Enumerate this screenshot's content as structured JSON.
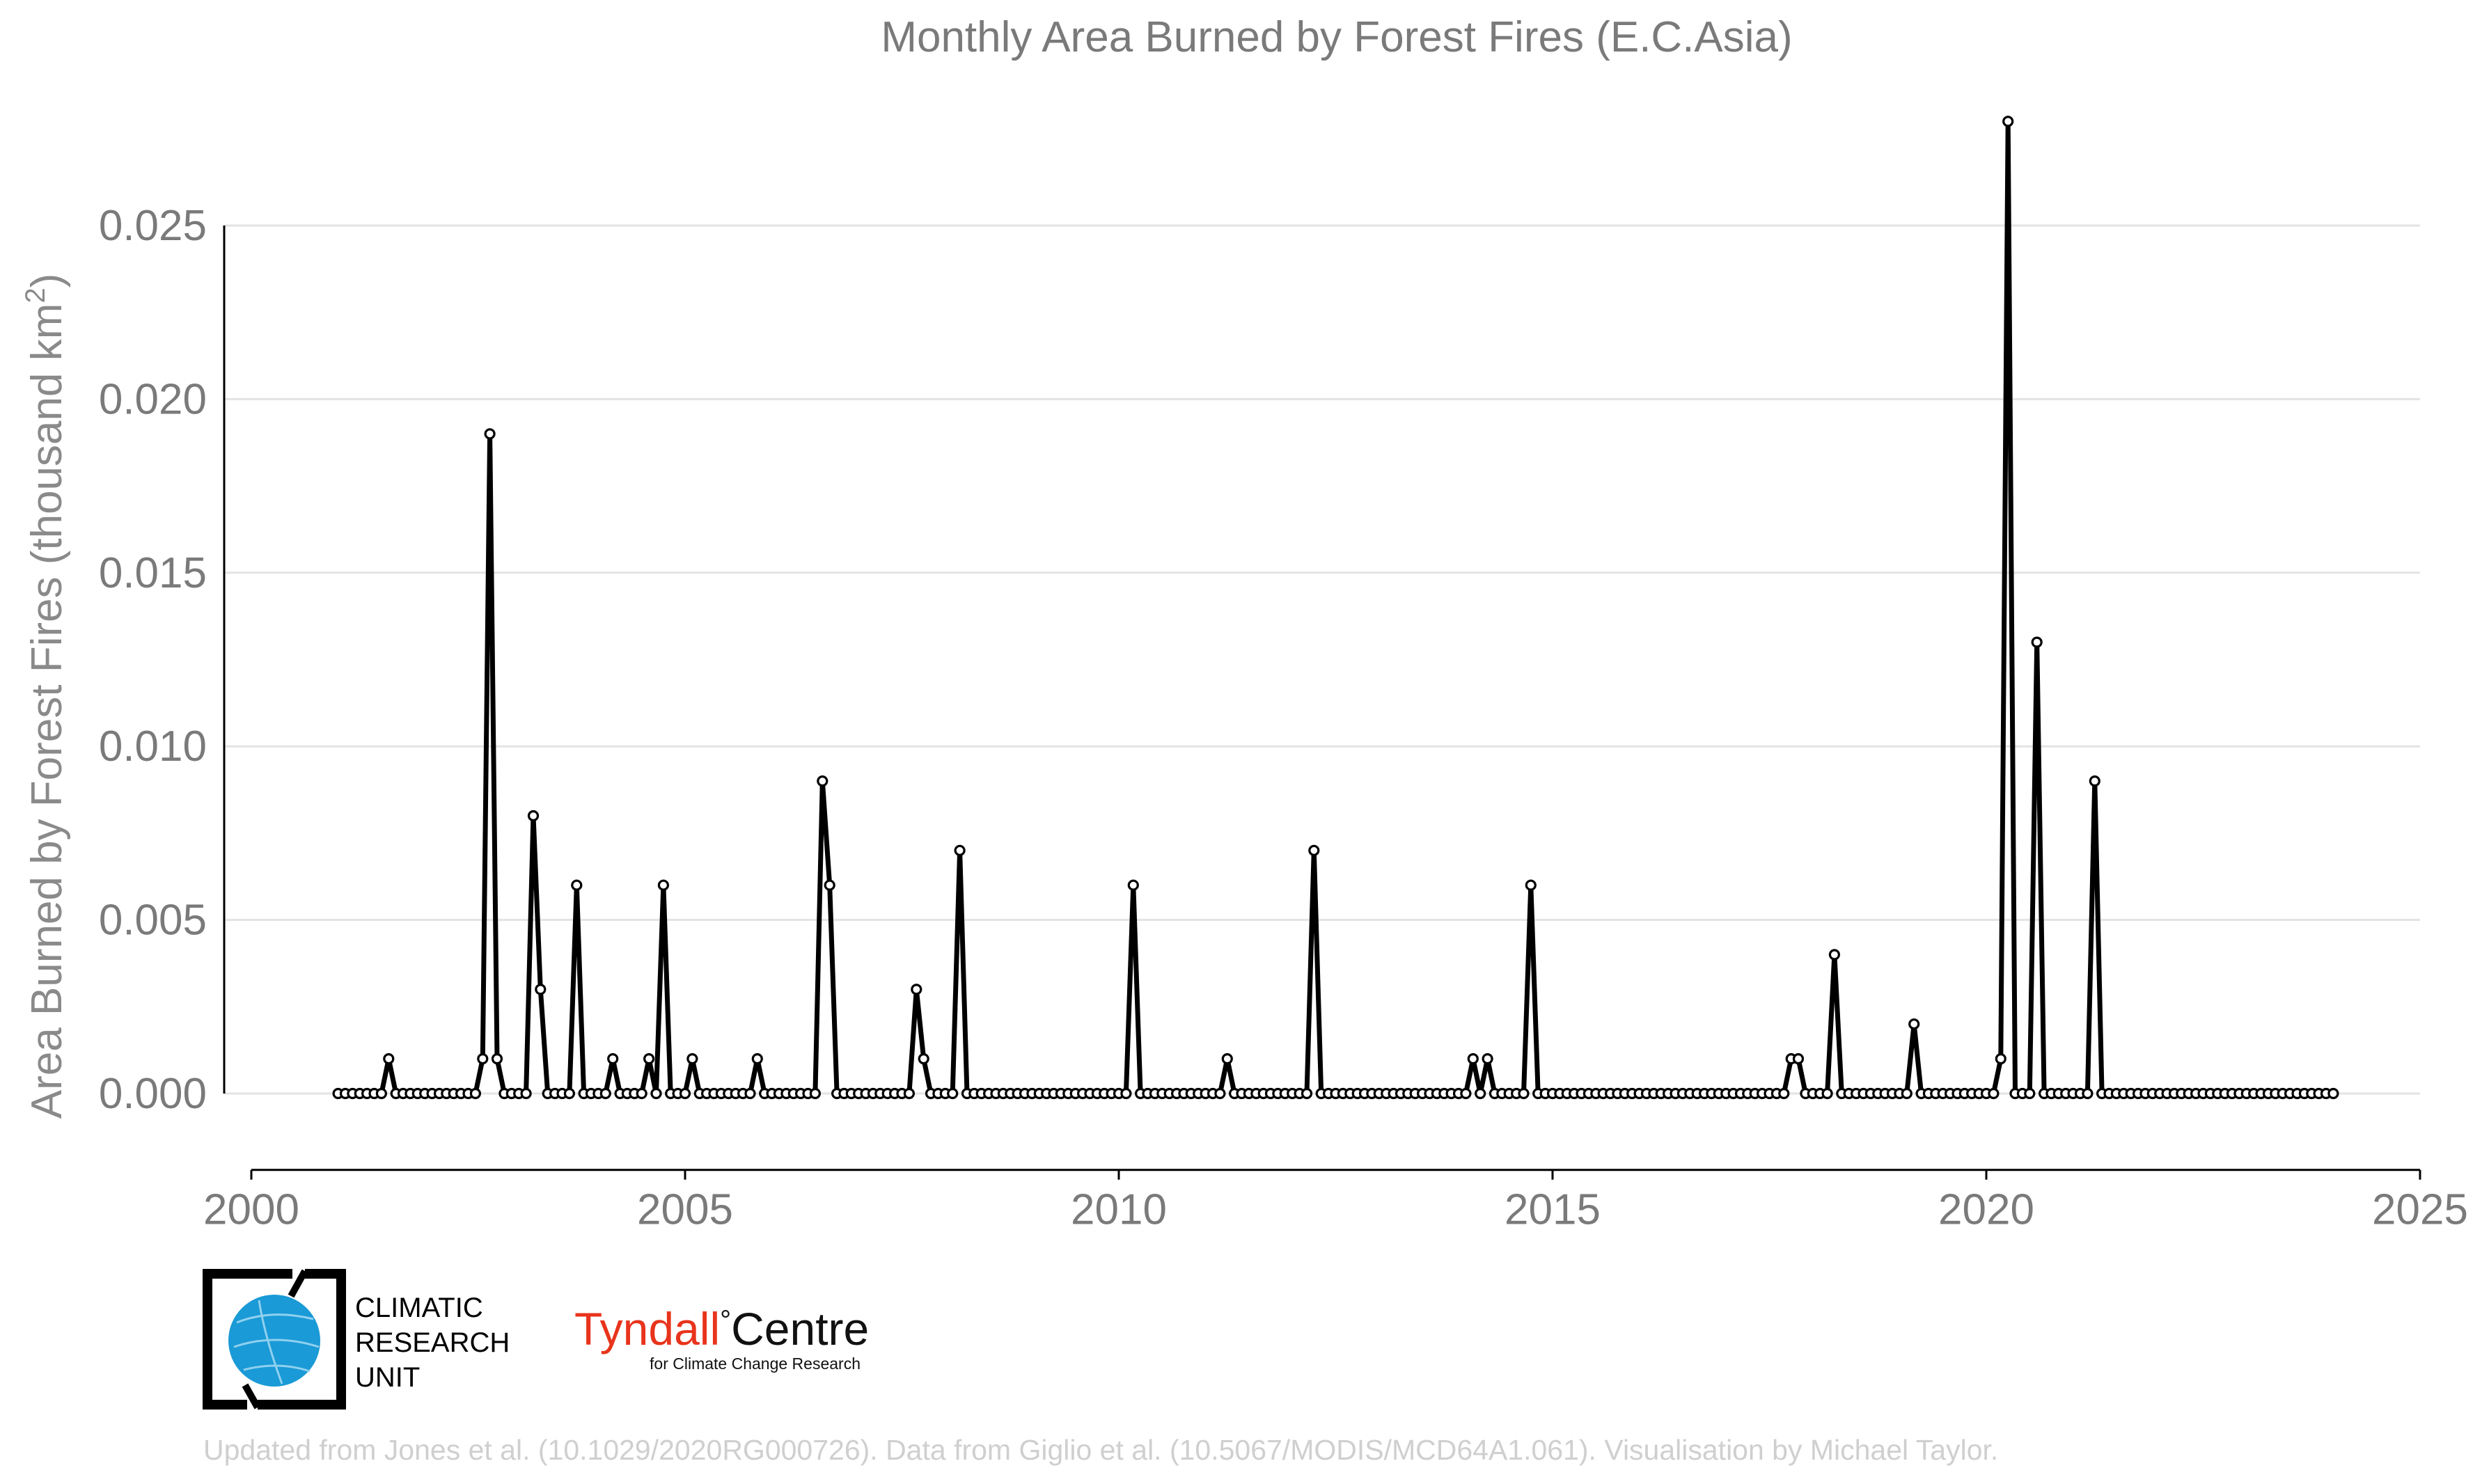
{
  "chart_data": {
    "type": "line",
    "title": "Monthly Area Burned by Forest Fires (E.C.Asia)",
    "ylabel_main": "Area Burned by Forest Fires (thousand km",
    "ylabel_sup": "2",
    "ylabel_close": ")",
    "xlabel": "",
    "xlim": [
      2000,
      2025
    ],
    "ylim": [
      -0.0022,
      0.0285
    ],
    "x_ticks": [
      "2000",
      "2005",
      "2010",
      "2015",
      "2020",
      "2025"
    ],
    "y_ticks": [
      "0.000",
      "0.005",
      "0.010",
      "0.015",
      "0.020",
      "0.025"
    ],
    "grid": true,
    "x_start_year": 2001,
    "x_start_month": 1,
    "months_note_unused": "",
    "series": [
      {
        "values": [
          0,
          0,
          0,
          0,
          0,
          0,
          0,
          0.001,
          0,
          0,
          0,
          0,
          0,
          0,
          0,
          0,
          0,
          0,
          0,
          0,
          0.001,
          0.019,
          0.001,
          0,
          0,
          0,
          0,
          0.008,
          0.003,
          0,
          0,
          0,
          0,
          0.006,
          0,
          0,
          0,
          0,
          0.001,
          0,
          0,
          0,
          0,
          0.001,
          0,
          0.006,
          0,
          0,
          0,
          0.001,
          0,
          0,
          0,
          0,
          0,
          0,
          0,
          0,
          0.001,
          0,
          0,
          0,
          0,
          0,
          0,
          0,
          0,
          0.009,
          0.006,
          0,
          0,
          0,
          0,
          0,
          0,
          0,
          0,
          0,
          0,
          0,
          0.003,
          0.001,
          0,
          0,
          0,
          0,
          0.007,
          0,
          0,
          0,
          0,
          0,
          0,
          0,
          0,
          0,
          0,
          0,
          0,
          0,
          0,
          0,
          0,
          0,
          0,
          0,
          0,
          0,
          0,
          0,
          0.006,
          0,
          0,
          0,
          0,
          0,
          0,
          0,
          0,
          0,
          0,
          0,
          0,
          0.001,
          0,
          0,
          0,
          0,
          0,
          0,
          0,
          0,
          0,
          0,
          0,
          0.007,
          0,
          0,
          0,
          0,
          0,
          0,
          0,
          0,
          0,
          0,
          0,
          0,
          0,
          0,
          0,
          0,
          0,
          0,
          0,
          0,
          0,
          0.001,
          0,
          0.001,
          0,
          0,
          0,
          0,
          0,
          0.006,
          0,
          0,
          0,
          0,
          0,
          0,
          0,
          0,
          0,
          0,
          0,
          0,
          0,
          0,
          0,
          0,
          0,
          0,
          0,
          0,
          0,
          0,
          0,
          0,
          0,
          0,
          0,
          0,
          0,
          0,
          0,
          0,
          0,
          0,
          0,
          0.001,
          0.001,
          0,
          0,
          0,
          0,
          0.004,
          0,
          0,
          0,
          0,
          0,
          0,
          0,
          0,
          0,
          0,
          0.002,
          0,
          0,
          0,
          0,
          0,
          0,
          0,
          0,
          0,
          0,
          0,
          0.001,
          0.028,
          0,
          0,
          0,
          0.013,
          0,
          0,
          0,
          0,
          0,
          0,
          0,
          0.009,
          0,
          0,
          0,
          0,
          0,
          0,
          0,
          0,
          0,
          0,
          0,
          0,
          0,
          0,
          0,
          0,
          0,
          0,
          0,
          0,
          0,
          0,
          0,
          0,
          0,
          0,
          0,
          0,
          0,
          0,
          0,
          0,
          0
        ]
      }
    ]
  },
  "footer": {
    "credit": "Updated from Jones et al. (10.1029/2020RG000726). Data from Giglio et al. (10.5067/MODIS/MCD64A1.061). Visualisation by Michael Taylor.",
    "cru_lines": [
      "CLIMATIC",
      "RESEARCH",
      "UNIT"
    ],
    "tyndall_red": "Tyndall",
    "tyndall_deg": "°",
    "tyndall_black": "Centre",
    "tyndall_sub": "for Climate Change Research"
  },
  "colors": {
    "line": "#000000",
    "marker_fill": "#ffffff",
    "tyndall_red": "#e8341c",
    "globe_blue": "#1a9ad6"
  }
}
